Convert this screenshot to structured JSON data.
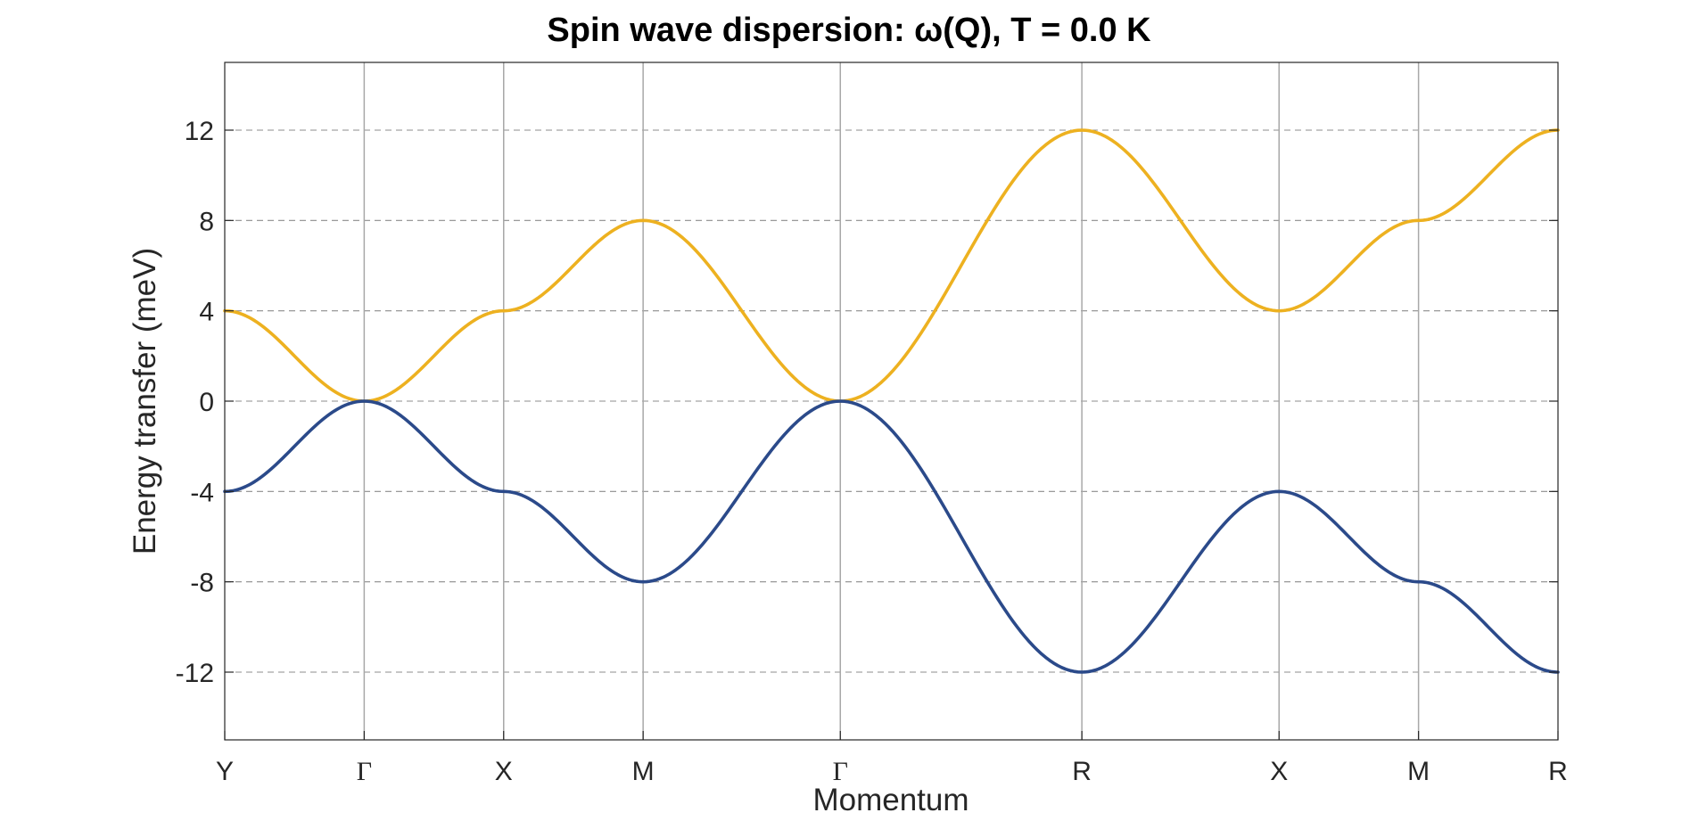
{
  "figure": {
    "title": "Spin wave dispersion: ω(Q), T =   0.0 K"
  },
  "chart_data": {
    "type": "line",
    "title": "Spin wave dispersion: ω(Q), T =   0.0 K",
    "xlabel": "Momentum",
    "ylabel": "Energy transfer (meV)",
    "xticks": [
      "Y",
      "Γ",
      "X",
      "M",
      "Γ",
      "R",
      "X",
      "M",
      "R"
    ],
    "ylim": [
      -15,
      15
    ],
    "yticks": [
      -12,
      -8,
      -4,
      0,
      4,
      8,
      12
    ],
    "ytick_labels": [
      "-12",
      "-8",
      "-4",
      "0",
      "4",
      "8",
      "12"
    ],
    "grid": {
      "vertical": "solid at high-symmetry points",
      "horizontal": "dashed at y ticks"
    },
    "segments": [
      {
        "from": "Y",
        "to": "Γ",
        "length": 1.0
      },
      {
        "from": "Γ",
        "to": "X",
        "length": 1.0
      },
      {
        "from": "X",
        "to": "M",
        "length": 1.0
      },
      {
        "from": "M",
        "to": "Γ",
        "length": 1.414
      },
      {
        "from": "Γ",
        "to": "R",
        "length": 1.732
      },
      {
        "from": "R",
        "to": "X",
        "length": 1.414
      },
      {
        "from": "X",
        "to": "M",
        "length": 1.0
      },
      {
        "from": "M",
        "to": "R",
        "length": 1.0
      }
    ],
    "series": [
      {
        "color": "#EDB120",
        "values_at_ticks": [
          4,
          0,
          4,
          8,
          0,
          12,
          4,
          8,
          12
        ]
      },
      {
        "color": "#2B4A8A",
        "values_at_ticks": [
          -4,
          0,
          -4,
          -8,
          0,
          -12,
          -4,
          -8,
          -12
        ]
      }
    ]
  }
}
